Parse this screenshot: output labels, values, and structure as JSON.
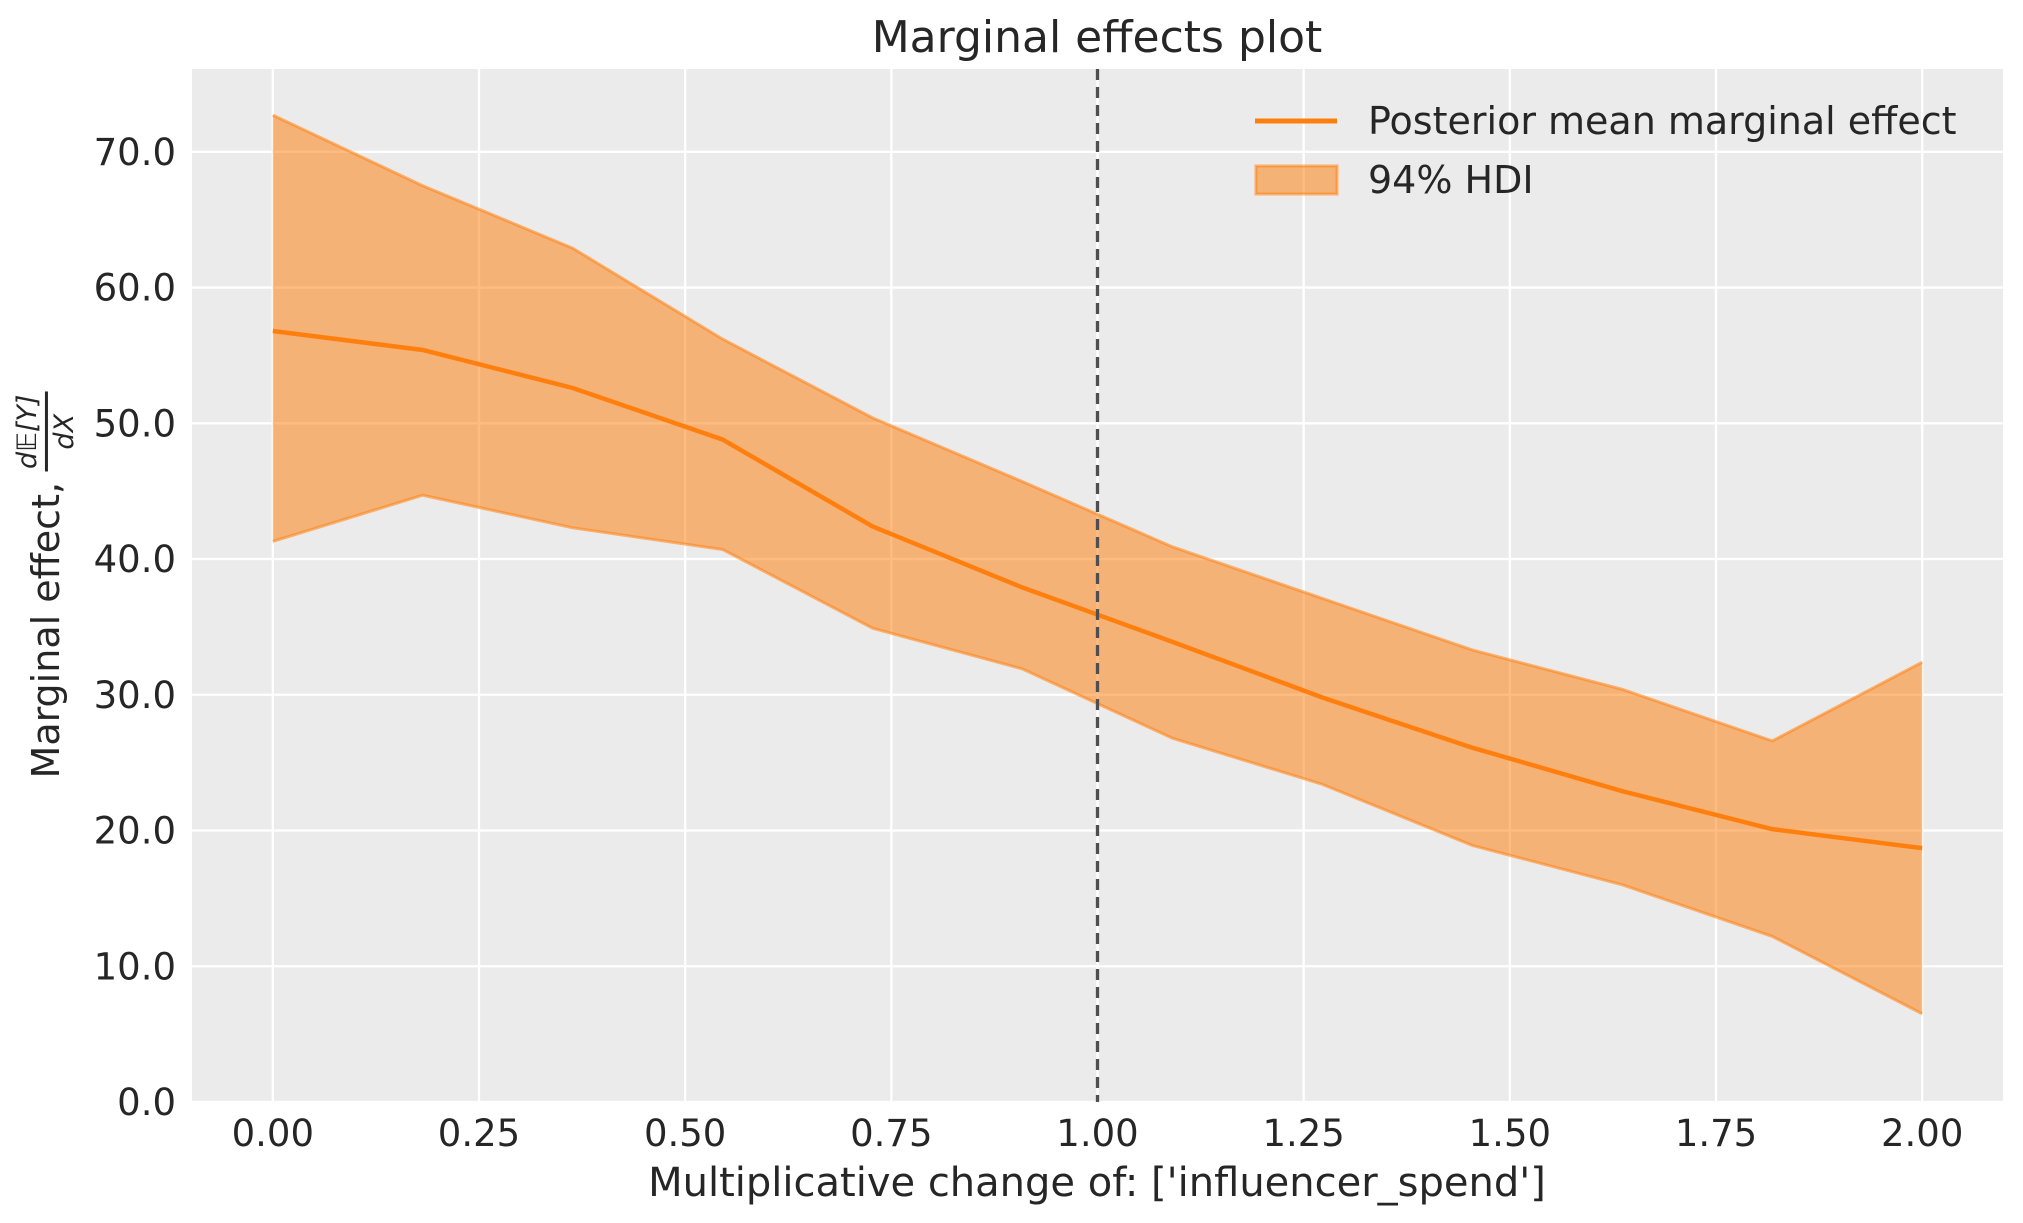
{
  "chart_data": {
    "type": "line",
    "title": "Marginal effects plot",
    "xlabel": "Multiplicative change of: ['influencer_spend']",
    "ylabel_prefix": "Marginal effect,",
    "ylabel_frac_num": "d𝔼[Y]",
    "ylabel_frac_den": "dX",
    "x": [
      0.0,
      0.1818,
      0.3636,
      0.5455,
      0.7273,
      0.9091,
      1.0909,
      1.2727,
      1.4545,
      1.6364,
      1.8182,
      2.0
    ],
    "series": [
      {
        "name": "Posterior mean marginal effect",
        "values": [
          56.8,
          55.4,
          52.6,
          48.8,
          42.4,
          37.9,
          33.9,
          29.8,
          26.1,
          22.9,
          20.1,
          18.7
        ]
      }
    ],
    "band": {
      "name": "94% HDI",
      "lower": [
        41.3,
        44.7,
        42.3,
        40.7,
        34.9,
        31.9,
        26.8,
        23.4,
        18.9,
        16.0,
        12.2,
        6.5
      ],
      "upper": [
        72.7,
        67.5,
        62.9,
        56.2,
        50.4,
        45.7,
        40.9,
        37.1,
        33.3,
        30.4,
        26.6,
        32.4
      ]
    },
    "reference_line_x": 1.0,
    "xlim": [
      -0.098,
      2.098
    ],
    "ylim": [
      0,
      76.1
    ],
    "xtick_values": [
      0.0,
      0.25,
      0.5,
      0.75,
      1.0,
      1.25,
      1.5,
      1.75,
      2.0
    ],
    "xtick_labels": [
      "0.00",
      "0.25",
      "0.50",
      "0.75",
      "1.00",
      "1.25",
      "1.50",
      "1.75",
      "2.00"
    ],
    "ytick_values": [
      0,
      10,
      20,
      30,
      40,
      50,
      60,
      70
    ],
    "ytick_labels": [
      "0.0",
      "10.0",
      "20.0",
      "30.0",
      "40.0",
      "50.0",
      "60.0",
      "70.0"
    ],
    "grid": true,
    "legend_position": "upper right",
    "colors": {
      "mean_line": "#ff7f0e",
      "band_fill": "rgba(255,127,14,0.52)",
      "band_edge": "rgba(255,127,14,0.55)",
      "reference_line": "#4f4f4f",
      "plot_background": "#ebebeb",
      "gridline": "#ffffff",
      "text": "#262626"
    }
  }
}
